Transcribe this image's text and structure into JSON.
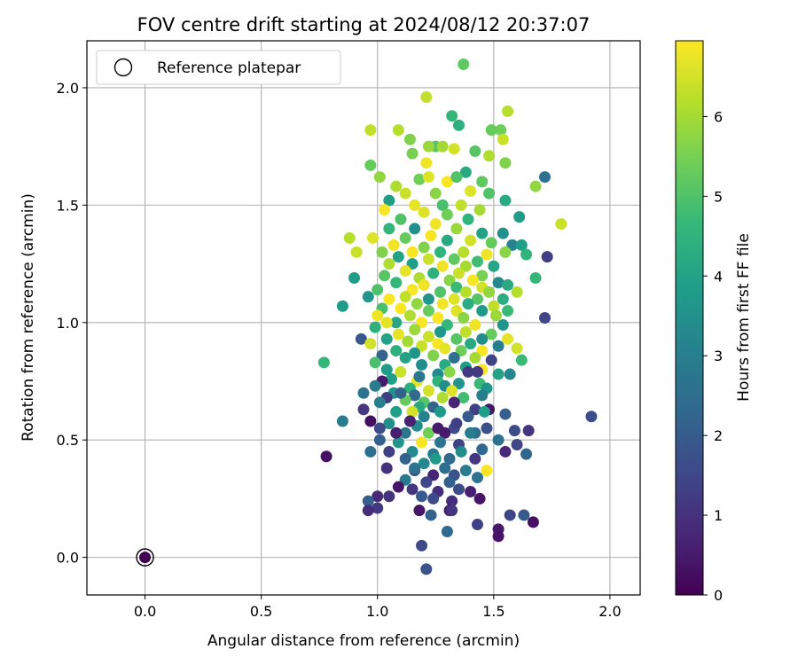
{
  "chart_data": {
    "type": "scatter",
    "title": "FOV centre drift starting at 2024/08/12 20:37:07",
    "xlabel": "Angular distance from reference (arcmin)",
    "ylabel": "Rotation from reference (arcmin)",
    "xlim": [
      -0.25,
      2.13
    ],
    "ylim": [
      -0.16,
      2.2
    ],
    "xticks": [
      "0.0",
      "0.5",
      "1.0",
      "1.5",
      "2.0"
    ],
    "yticks": [
      "0.0",
      "0.5",
      "1.0",
      "1.5",
      "2.0"
    ],
    "grid": true,
    "legend": {
      "position": "top-left",
      "entries": [
        "Reference platepar"
      ]
    },
    "reference_point": {
      "x": 0.0,
      "y": 0.0,
      "hours": 0.0
    },
    "colorbar": {
      "label": "Hours from first FF file",
      "colormap": "viridis",
      "range": [
        0,
        6.95
      ],
      "ticks": [
        "0",
        "1",
        "2",
        "3",
        "4",
        "5",
        "6"
      ]
    },
    "points": [
      [
        1.37,
        2.1,
        5.2
      ],
      [
        1.21,
        1.96,
        6.3
      ],
      [
        1.56,
        1.9,
        6.2
      ],
      [
        1.32,
        1.88,
        4.6
      ],
      [
        1.35,
        1.84,
        4.4
      ],
      [
        0.97,
        1.82,
        6.3
      ],
      [
        1.49,
        1.82,
        5.3
      ],
      [
        1.53,
        1.82,
        5.4
      ],
      [
        1.09,
        1.82,
        6.2
      ],
      [
        1.14,
        1.78,
        5.6
      ],
      [
        1.54,
        1.78,
        6.4
      ],
      [
        1.25,
        1.75,
        5.1
      ],
      [
        1.22,
        1.75,
        5.9
      ],
      [
        1.28,
        1.75,
        6.0
      ],
      [
        1.33,
        1.74,
        6.5
      ],
      [
        1.48,
        1.71,
        6.1
      ],
      [
        1.15,
        1.72,
        5.5
      ],
      [
        1.42,
        1.73,
        5.1
      ],
      [
        0.97,
        1.67,
        5.3
      ],
      [
        1.21,
        1.68,
        6.8
      ],
      [
        1.55,
        1.68,
        5.6
      ],
      [
        1.38,
        1.64,
        4.2
      ],
      [
        1.72,
        1.62,
        2.6
      ],
      [
        1.01,
        1.62,
        5.8
      ],
      [
        1.18,
        1.61,
        5.4
      ],
      [
        1.3,
        1.6,
        6.9
      ],
      [
        1.45,
        1.6,
        5.2
      ],
      [
        1.22,
        1.62,
        6.6
      ],
      [
        1.34,
        1.62,
        5.0
      ],
      [
        1.68,
        1.58,
        5.8
      ],
      [
        1.08,
        1.58,
        6.1
      ],
      [
        1.12,
        1.55,
        6.4
      ],
      [
        1.25,
        1.55,
        5.7
      ],
      [
        1.4,
        1.56,
        6.6
      ],
      [
        1.48,
        1.55,
        5.0
      ],
      [
        1.55,
        1.52,
        4.2
      ],
      [
        1.05,
        1.52,
        3.8
      ],
      [
        1.16,
        1.5,
        6.7
      ],
      [
        1.28,
        1.5,
        4.9
      ],
      [
        1.36,
        1.5,
        6.3
      ],
      [
        1.44,
        1.48,
        6.0
      ],
      [
        1.03,
        1.48,
        6.9
      ],
      [
        1.2,
        1.47,
        6.6
      ],
      [
        1.3,
        1.46,
        5.4
      ],
      [
        1.39,
        1.44,
        4.5
      ],
      [
        1.61,
        1.45,
        3.8
      ],
      [
        1.1,
        1.44,
        5.0
      ],
      [
        1.25,
        1.42,
        6.8
      ],
      [
        1.79,
        1.42,
        6.4
      ],
      [
        1.05,
        1.4,
        4.6
      ],
      [
        1.16,
        1.4,
        3.5
      ],
      [
        1.34,
        1.4,
        5.9
      ],
      [
        1.45,
        1.38,
        4.0
      ],
      [
        1.54,
        1.38,
        3.5
      ],
      [
        1.23,
        1.37,
        6.9
      ],
      [
        0.88,
        1.36,
        6.2
      ],
      [
        0.98,
        1.36,
        6.6
      ],
      [
        1.12,
        1.36,
        5.3
      ],
      [
        1.3,
        1.35,
        4.2
      ],
      [
        1.4,
        1.35,
        6.5
      ],
      [
        1.49,
        1.34,
        5.3
      ],
      [
        1.07,
        1.33,
        6.8
      ],
      [
        1.2,
        1.32,
        5.6
      ],
      [
        1.58,
        1.33,
        3.1
      ],
      [
        1.62,
        1.33,
        3.9
      ],
      [
        1.02,
        1.3,
        5.6
      ],
      [
        1.15,
        1.3,
        6.9
      ],
      [
        1.27,
        1.3,
        4.5
      ],
      [
        1.37,
        1.3,
        6.2
      ],
      [
        1.47,
        1.29,
        6.8
      ],
      [
        0.91,
        1.3,
        6.4
      ],
      [
        1.55,
        1.3,
        5.7
      ],
      [
        1.64,
        1.29,
        4.5
      ],
      [
        1.73,
        1.28,
        1.3
      ],
      [
        1.09,
        1.28,
        4.0
      ],
      [
        1.22,
        1.27,
        6.4
      ],
      [
        1.33,
        1.27,
        5.2
      ],
      [
        1.43,
        1.26,
        4.8
      ],
      [
        1.05,
        1.25,
        6.1
      ],
      [
        1.15,
        1.25,
        3.9
      ],
      [
        1.28,
        1.24,
        6.8
      ],
      [
        1.38,
        1.24,
        6.0
      ],
      [
        1.5,
        1.24,
        4.1
      ],
      [
        1.12,
        1.22,
        6.7
      ],
      [
        1.24,
        1.21,
        4.4
      ],
      [
        1.35,
        1.21,
        6.4
      ],
      [
        1.45,
        1.2,
        5.5
      ],
      [
        1.68,
        1.19,
        4.6
      ],
      [
        0.9,
        1.19,
        3.8
      ],
      [
        1.03,
        1.2,
        5.1
      ],
      [
        1.18,
        1.19,
        6.1
      ],
      [
        1.31,
        1.18,
        5.7
      ],
      [
        1.41,
        1.18,
        6.9
      ],
      [
        1.52,
        1.17,
        3.3
      ],
      [
        1.08,
        1.17,
        4.6
      ],
      [
        1.2,
        1.16,
        6.8
      ],
      [
        1.34,
        1.15,
        4.7
      ],
      [
        1.45,
        1.15,
        6.5
      ],
      [
        1.56,
        1.16,
        4.2
      ],
      [
        1.0,
        1.14,
        5.0
      ],
      [
        1.15,
        1.14,
        6.9
      ],
      [
        1.27,
        1.13,
        5.0
      ],
      [
        1.38,
        1.13,
        6.2
      ],
      [
        1.48,
        1.13,
        5.8
      ],
      [
        1.6,
        1.13,
        6.2
      ],
      [
        1.12,
        1.11,
        6.3
      ],
      [
        1.22,
        1.1,
        3.6
      ],
      [
        1.33,
        1.1,
        6.6
      ],
      [
        1.43,
        1.1,
        5.1
      ],
      [
        1.54,
        1.1,
        4.3
      ],
      [
        0.96,
        1.11,
        3.6
      ],
      [
        1.05,
        1.1,
        6.9
      ],
      [
        1.17,
        1.08,
        5.8
      ],
      [
        1.28,
        1.08,
        6.8
      ],
      [
        1.39,
        1.08,
        4.3
      ],
      [
        1.5,
        1.07,
        6.3
      ],
      [
        0.85,
        1.07,
        3.8
      ],
      [
        1.02,
        1.06,
        4.9
      ],
      [
        1.1,
        1.06,
        6.9
      ],
      [
        1.22,
        1.05,
        5.3
      ],
      [
        1.34,
        1.05,
        6.6
      ],
      [
        1.45,
        1.05,
        3.7
      ],
      [
        1.56,
        1.05,
        4.7
      ],
      [
        1.0,
        1.03,
        6.8
      ],
      [
        1.14,
        1.03,
        6.1
      ],
      [
        1.26,
        1.02,
        6.9
      ],
      [
        1.37,
        1.02,
        5.7
      ],
      [
        1.51,
        1.03,
        5.9
      ],
      [
        1.72,
        1.02,
        1.5
      ],
      [
        1.08,
        1.0,
        4.1
      ],
      [
        1.19,
        1.0,
        6.9
      ],
      [
        1.3,
        0.99,
        4.6
      ],
      [
        1.42,
        0.99,
        6.8
      ],
      [
        1.54,
        0.99,
        3.6
      ],
      [
        1.04,
        1.0,
        6.7
      ],
      [
        0.99,
        0.98,
        4.4
      ],
      [
        1.16,
        0.97,
        5.9
      ],
      [
        1.27,
        0.96,
        3.7
      ],
      [
        1.38,
        0.96,
        6.3
      ],
      [
        1.49,
        0.95,
        5.3
      ],
      [
        1.09,
        0.95,
        6.7
      ],
      [
        1.22,
        0.94,
        6.4
      ],
      [
        1.34,
        0.93,
        5.1
      ],
      [
        1.45,
        0.93,
        3.4
      ],
      [
        1.56,
        0.93,
        6.7
      ],
      [
        0.93,
        0.93,
        1.9
      ],
      [
        1.04,
        0.93,
        4.0
      ],
      [
        1.13,
        0.92,
        6.0
      ],
      [
        1.26,
        0.91,
        6.9
      ],
      [
        1.4,
        0.91,
        4.2
      ],
      [
        1.52,
        0.9,
        3.0
      ],
      [
        0.97,
        0.91,
        6.5
      ],
      [
        1.19,
        0.9,
        6.4
      ],
      [
        1.29,
        0.89,
        6.7
      ],
      [
        1.6,
        0.89,
        6.5
      ],
      [
        1.08,
        0.88,
        4.4
      ],
      [
        1.36,
        0.88,
        5.4
      ],
      [
        1.45,
        0.88,
        6.9
      ],
      [
        1.16,
        0.87,
        3.6
      ],
      [
        1.24,
        0.86,
        5.6
      ],
      [
        1.33,
        0.85,
        2.6
      ],
      [
        1.02,
        0.86,
        2.2
      ],
      [
        1.12,
        0.85,
        4.0
      ],
      [
        1.42,
        0.85,
        6.0
      ],
      [
        1.49,
        0.84,
        1.4
      ],
      [
        1.62,
        0.84,
        4.7
      ],
      [
        0.77,
        0.83,
        4.6
      ],
      [
        0.99,
        0.83,
        4.9
      ],
      [
        1.19,
        0.82,
        3.4
      ],
      [
        1.29,
        0.82,
        4.2
      ],
      [
        1.38,
        0.81,
        3.9
      ],
      [
        1.45,
        0.8,
        6.9
      ],
      [
        1.04,
        0.8,
        3.8
      ],
      [
        1.1,
        0.79,
        6.4
      ],
      [
        1.31,
        0.79,
        5.7
      ],
      [
        1.39,
        0.79,
        1.2
      ],
      [
        1.26,
        0.78,
        3.3
      ],
      [
        1.52,
        0.78,
        4.0
      ],
      [
        1.57,
        0.78,
        3.2
      ],
      [
        1.06,
        0.76,
        3.9
      ],
      [
        1.17,
        0.75,
        6.7
      ],
      [
        1.26,
        0.75,
        4.5
      ],
      [
        1.35,
        0.74,
        3.6
      ],
      [
        1.44,
        0.74,
        4.7
      ],
      [
        1.02,
        0.75,
        0.5
      ],
      [
        1.29,
        0.73,
        3.4
      ],
      [
        1.47,
        0.72,
        3.6
      ],
      [
        1.14,
        0.72,
        4.4
      ],
      [
        1.22,
        0.71,
        6.5
      ],
      [
        1.32,
        0.71,
        6.6
      ],
      [
        0.99,
        0.73,
        2.9
      ],
      [
        1.07,
        0.7,
        3.6
      ],
      [
        1.16,
        0.69,
        2.4
      ],
      [
        1.28,
        0.68,
        6.1
      ],
      [
        1.37,
        0.68,
        4.8
      ],
      [
        1.45,
        0.69,
        3.0
      ],
      [
        0.94,
        0.7,
        2.6
      ],
      [
        1.04,
        0.68,
        1.3
      ],
      [
        1.12,
        0.67,
        5.3
      ],
      [
        1.2,
        0.66,
        5.1
      ],
      [
        1.33,
        0.66,
        0.7
      ],
      [
        1.01,
        0.66,
        3.0
      ],
      [
        1.18,
        0.64,
        4.2
      ],
      [
        1.24,
        0.64,
        2.3
      ],
      [
        1.42,
        0.63,
        1.3
      ],
      [
        1.55,
        0.61,
        2.1
      ],
      [
        0.94,
        0.63,
        1.1
      ],
      [
        1.08,
        0.62,
        3.9
      ],
      [
        1.15,
        0.62,
        6.5
      ],
      [
        1.27,
        0.62,
        3.7
      ],
      [
        1.39,
        0.6,
        2.0
      ],
      [
        0.85,
        0.58,
        2.9
      ],
      [
        0.97,
        0.58,
        0.3
      ],
      [
        1.05,
        0.57,
        3.5
      ],
      [
        1.17,
        0.56,
        3.4
      ],
      [
        1.33,
        0.55,
        1.6
      ],
      [
        1.47,
        0.55,
        1.7
      ],
      [
        1.59,
        0.54,
        1.6
      ],
      [
        1.01,
        0.55,
        1.6
      ],
      [
        1.12,
        0.53,
        2.7
      ],
      [
        1.22,
        0.53,
        5.4
      ],
      [
        1.29,
        0.53,
        0.5
      ],
      [
        1.42,
        0.53,
        2.4
      ],
      [
        1.52,
        0.5,
        2.6
      ],
      [
        1.65,
        0.54,
        1.1
      ],
      [
        1.01,
        0.5,
        2.1
      ],
      [
        1.09,
        0.49,
        3.6
      ],
      [
        1.19,
        0.49,
        6.9
      ],
      [
        1.27,
        0.49,
        2.7
      ],
      [
        1.35,
        0.48,
        1.4
      ],
      [
        1.45,
        0.46,
        2.3
      ],
      [
        1.55,
        0.45,
        0.8
      ],
      [
        0.97,
        0.45,
        2.5
      ],
      [
        1.05,
        0.45,
        1.3
      ],
      [
        1.15,
        0.45,
        3.3
      ],
      [
        1.24,
        0.44,
        2.8
      ],
      [
        1.31,
        0.42,
        2.4
      ],
      [
        1.42,
        0.42,
        1.1
      ],
      [
        1.64,
        0.44,
        2.3
      ],
      [
        0.78,
        0.43,
        0.3
      ],
      [
        1.12,
        0.42,
        2.2
      ],
      [
        1.2,
        0.4,
        3.3
      ],
      [
        1.29,
        0.38,
        2.5
      ],
      [
        1.38,
        0.37,
        2.9
      ],
      [
        1.47,
        0.37,
        6.9
      ],
      [
        1.04,
        0.38,
        1.0
      ],
      [
        1.16,
        0.37,
        1.9
      ],
      [
        1.24,
        0.35,
        0.7
      ],
      [
        1.33,
        0.35,
        1.8
      ],
      [
        1.43,
        0.34,
        2.6
      ],
      [
        1.12,
        0.33,
        2.8
      ],
      [
        1.21,
        0.32,
        1.5
      ],
      [
        1.31,
        0.32,
        2.1
      ],
      [
        1.35,
        0.29,
        1.6
      ],
      [
        1.09,
        0.3,
        0.4
      ],
      [
        1.15,
        0.29,
        1.1
      ],
      [
        1.26,
        0.28,
        0.9
      ],
      [
        1.4,
        0.28,
        0.6
      ],
      [
        1.0,
        0.26,
        0.8
      ],
      [
        1.05,
        0.26,
        1.0
      ],
      [
        1.19,
        0.26,
        2.0
      ],
      [
        1.24,
        0.25,
        1.6
      ],
      [
        1.32,
        0.24,
        0.9
      ],
      [
        1.44,
        0.25,
        0.4
      ],
      [
        0.96,
        0.24,
        2.1
      ],
      [
        1.0,
        0.21,
        1.2
      ],
      [
        1.18,
        0.2,
        0.4
      ],
      [
        1.31,
        0.2,
        0.5
      ],
      [
        0.96,
        0.2,
        0.9
      ],
      [
        1.23,
        0.18,
        2.2
      ],
      [
        1.32,
        0.2,
        1.1
      ],
      [
        1.57,
        0.18,
        1.5
      ],
      [
        1.63,
        0.18,
        2.0
      ],
      [
        1.67,
        0.15,
        0.3
      ],
      [
        1.43,
        0.14,
        1.3
      ],
      [
        1.52,
        0.12,
        0.5
      ],
      [
        1.52,
        0.09,
        0.4
      ],
      [
        1.3,
        0.11,
        2.4
      ],
      [
        1.19,
        0.05,
        1.6
      ],
      [
        1.21,
        -0.05,
        1.8
      ],
      [
        1.92,
        0.6,
        1.7
      ],
      [
        1.6,
        0.48,
        1.5
      ],
      [
        1.16,
        0.38,
        2.6
      ],
      [
        1.48,
        0.63,
        0.4
      ],
      [
        1.43,
        0.79,
        1.2
      ],
      [
        1.14,
        0.58,
        0.7
      ],
      [
        1.34,
        0.57,
        1.3
      ],
      [
        1.1,
        0.7,
        2.2
      ],
      [
        1.26,
        0.55,
        0.5
      ],
      [
        1.2,
        0.6,
        3.1
      ],
      [
        1.36,
        0.45,
        3.4
      ],
      [
        1.08,
        0.53,
        0.6
      ],
      [
        1.4,
        0.53,
        2.9
      ],
      [
        1.25,
        0.42,
        3.7
      ],
      [
        1.46,
        0.62,
        3.9
      ],
      [
        1.18,
        0.77,
        2.8
      ]
    ]
  }
}
